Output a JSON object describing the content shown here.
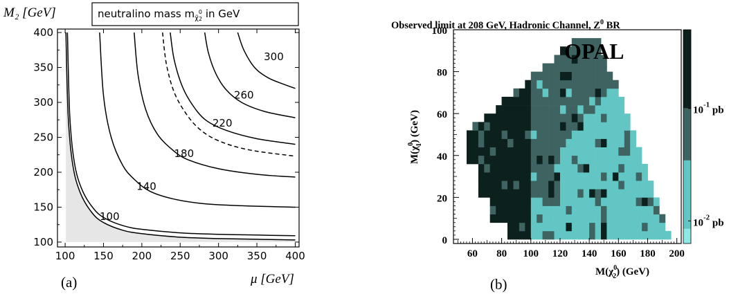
{
  "chart_data": [
    {
      "type": "line",
      "panel_label": "(a)",
      "xlabel": "μ [GeV]",
      "ylabel": "M₂ [GeV]",
      "legend_box": "neutralino mass m",
      "legend_box_sub": "χ̃",
      "legend_box_subsup": "0",
      "legend_box_subsub": "2",
      "legend_box_suffix": " in GeV",
      "xlim": [
        90,
        405
      ],
      "ylim": [
        93,
        405
      ],
      "xticks": [
        "100",
        "150",
        "200",
        "250",
        "300",
        "350",
        "400"
      ],
      "yticks": [
        "100",
        "150",
        "200",
        "250",
        "300",
        "350",
        "400"
      ],
      "shaded_region": "excluded area below lowest contour",
      "series": [
        {
          "name": "100",
          "style": "solid",
          "x": [
            101,
            104,
            110,
            120,
            135,
            150,
            175,
            200,
            250,
            300,
            350,
            400
          ],
          "y": [
            400,
            280,
            210,
            170,
            142,
            128,
            117,
            112,
            107,
            105,
            104,
            103
          ]
        },
        {
          "name": "",
          "style": "solid",
          "x": [
            103,
            106,
            112,
            122,
            137,
            152,
            177,
            202,
            252,
            302,
            352,
            400
          ],
          "y": [
            400,
            282,
            214,
            175,
            148,
            134,
            123,
            118,
            113,
            111,
            110,
            109
          ]
        },
        {
          "name": "140",
          "style": "solid",
          "x": [
            145,
            150,
            160,
            175,
            190,
            210,
            240,
            280,
            330,
            400
          ],
          "y": [
            400,
            310,
            250,
            210,
            190,
            173,
            162,
            155,
            152,
            150
          ]
        },
        {
          "name": "180",
          "style": "solid",
          "x": [
            190,
            195,
            205,
            220,
            240,
            260,
            300,
            350,
            400
          ],
          "y": [
            400,
            340,
            290,
            255,
            232,
            218,
            205,
            197,
            193
          ]
        },
        {
          "name": "",
          "style": "dashed",
          "x": [
            227,
            232,
            242,
            257,
            275,
            300,
            340,
            400
          ],
          "y": [
            400,
            355,
            315,
            285,
            262,
            245,
            232,
            223
          ]
        },
        {
          "name": "220",
          "style": "solid",
          "x": [
            237,
            242,
            252,
            265,
            283,
            310,
            350,
            400
          ],
          "y": [
            400,
            362,
            325,
            298,
            275,
            260,
            248,
            240
          ]
        },
        {
          "name": "260",
          "style": "solid",
          "x": [
            282,
            287,
            297,
            310,
            330,
            360,
            400
          ],
          "y": [
            400,
            370,
            340,
            318,
            300,
            287,
            278
          ]
        },
        {
          "name": "300",
          "style": "solid",
          "x": [
            325,
            333,
            347,
            365,
            385,
            400
          ],
          "y": [
            400,
            375,
            350,
            335,
            326,
            320
          ]
        }
      ],
      "contour_labels": [
        {
          "text": "100",
          "x": 158,
          "y": 136
        },
        {
          "text": "140",
          "x": 206,
          "y": 179
        },
        {
          "text": "180",
          "x": 255,
          "y": 226
        },
        {
          "text": "220",
          "x": 305,
          "y": 270
        },
        {
          "text": "260",
          "x": 333,
          "y": 310
        },
        {
          "text": "300",
          "x": 372,
          "y": 365
        }
      ]
    },
    {
      "type": "heatmap",
      "panel_label": "(b)",
      "title": "Observed limit at 208 GeV, Hadronic Channel, Z",
      "title_sup": "0",
      "title_suffix": " BR",
      "watermark": "OPAL",
      "xlabel": "M(χ",
      "xlabel_sup": "0",
      "xlabel_sub": "2",
      "xlabel_suffix": ") (GeV)",
      "ylabel": "M(χ",
      "ylabel_sup": "0",
      "ylabel_sub": "1",
      "ylabel_suffix": ") (GeV)",
      "xlim": [
        47,
        203
      ],
      "ylim": [
        -2,
        100
      ],
      "xticks": [
        "60",
        "80",
        "100",
        "120",
        "140",
        "160",
        "180",
        "200"
      ],
      "yticks": [
        "0",
        "20",
        "40",
        "60",
        "80",
        "100"
      ],
      "cell_size_gev": 4,
      "colorbar": {
        "scale": "log",
        "range_pb": [
          0.0063,
          0.5
        ],
        "labels": [
          {
            "base": "10",
            "exp": "-1",
            "unit": " pb",
            "value": 0.1
          },
          {
            "base": "10",
            "exp": "-2",
            "unit": " pb",
            "value": 0.01
          }
        ],
        "colors": {
          "high": "#0c211d",
          "mid": "#3e6360",
          "low": "#62c7c4",
          "lowest": "#8de8e6"
        }
      }
    }
  ]
}
